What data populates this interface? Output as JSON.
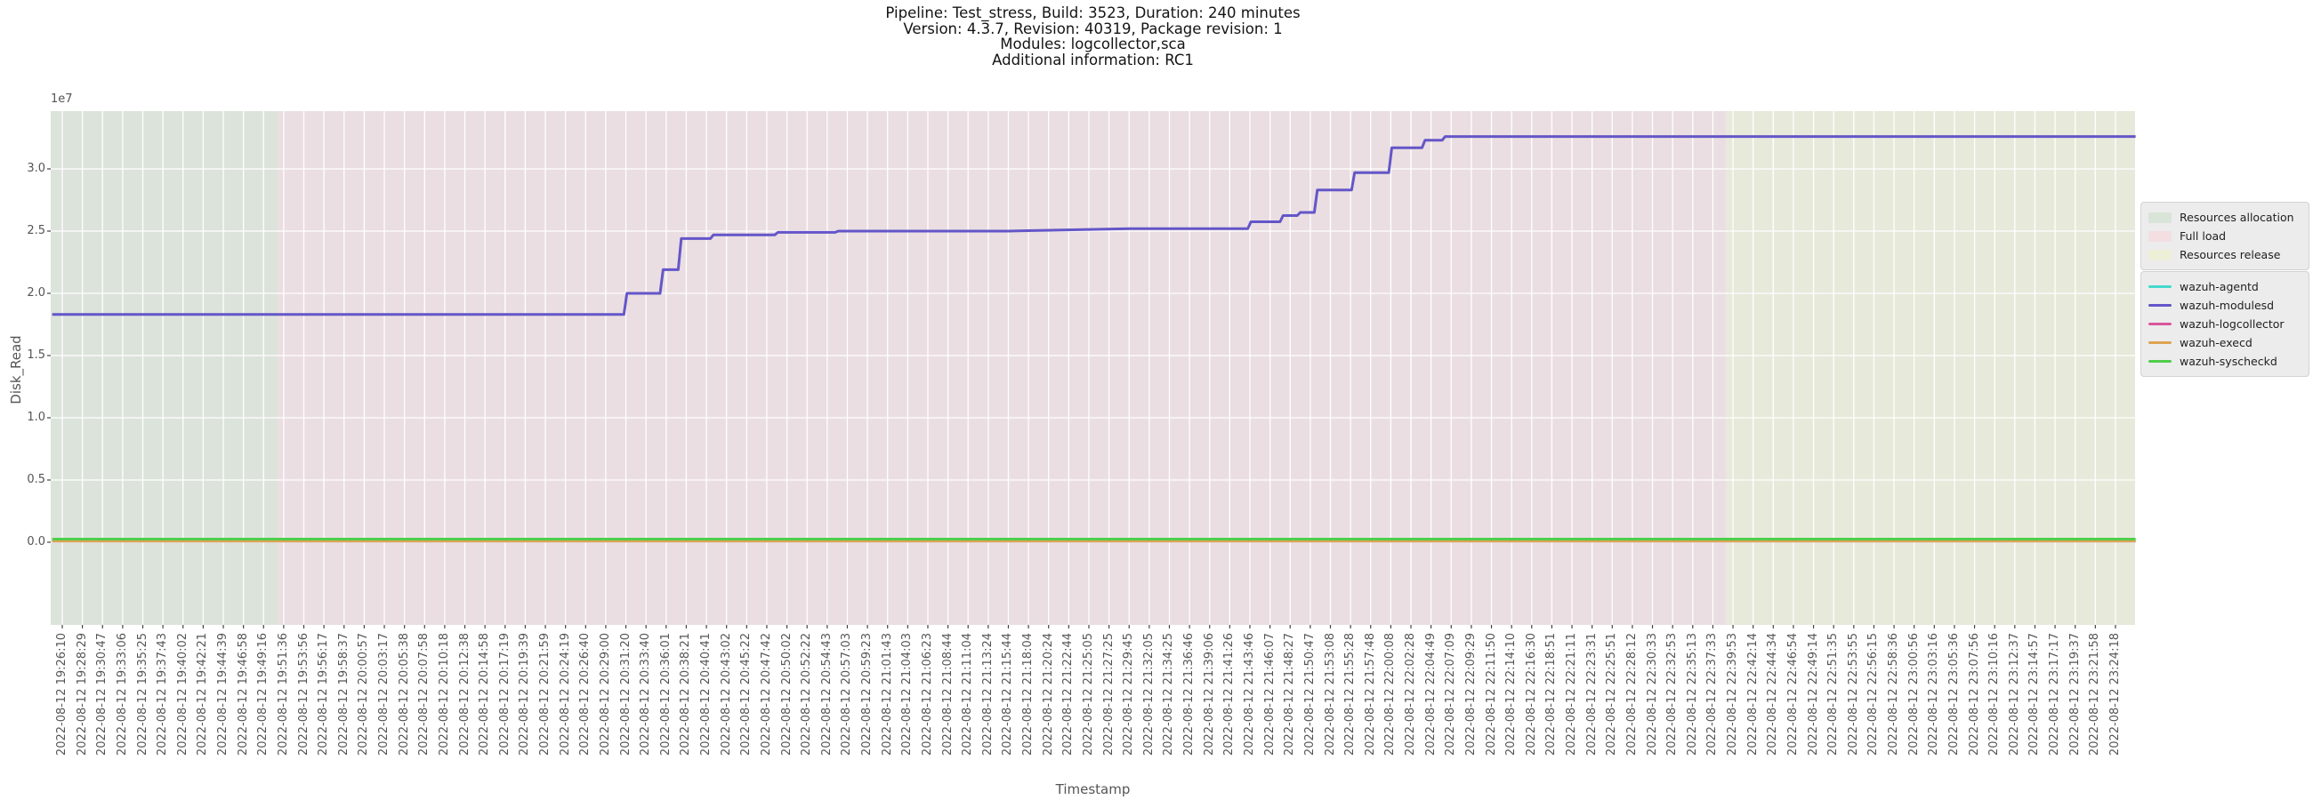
{
  "title": {
    "line1": "Pipeline: Test_stress, Build: 3523, Duration: 240 minutes",
    "line2": "Version: 4.3.7, Revision: 40319, Package revision: 1",
    "line3": "Modules: logcollector,sca",
    "line4": "Additional information: RC1"
  },
  "axes": {
    "x_label": "Timestamp",
    "y_label": "Disk_Read",
    "y_offset_label": "1e7"
  },
  "colors": {
    "figure_background": "#ffffff",
    "grid": "#ffffff",
    "tick_text": "#555555",
    "title_text": "#141414",
    "legend_background": "#ececec",
    "legend_border": "#d2d2d2"
  },
  "chart_data": {
    "type": "line",
    "title": "Pipeline: Test_stress, Build: 3523, Duration: 240 minutes",
    "xlabel": "Timestamp",
    "ylabel": "Disk_Read",
    "y_offset_factor": "1e7",
    "grid": true,
    "legend_position": "right",
    "ylim": [
      -6600000,
      34600000
    ],
    "y_ticks": [
      {
        "value": 0,
        "label": "0.0"
      },
      {
        "value": 5000000,
        "label": "0.5"
      },
      {
        "value": 10000000,
        "label": "1.0"
      },
      {
        "value": 15000000,
        "label": "1.5"
      },
      {
        "value": 20000000,
        "label": "2.0"
      },
      {
        "value": 25000000,
        "label": "2.5"
      },
      {
        "value": 30000000,
        "label": "3.0"
      }
    ],
    "x_tick_labels": [
      "2022-08-12 19:26:10",
      "2022-08-12 19:28:29",
      "2022-08-12 19:30:47",
      "2022-08-12 19:33:06",
      "2022-08-12 19:35:25",
      "2022-08-12 19:37:43",
      "2022-08-12 19:40:02",
      "2022-08-12 19:42:21",
      "2022-08-12 19:44:39",
      "2022-08-12 19:46:58",
      "2022-08-12 19:49:16",
      "2022-08-12 19:51:36",
      "2022-08-12 19:53:56",
      "2022-08-12 19:56:17",
      "2022-08-12 19:58:37",
      "2022-08-12 20:00:57",
      "2022-08-12 20:03:17",
      "2022-08-12 20:05:38",
      "2022-08-12 20:07:58",
      "2022-08-12 20:10:18",
      "2022-08-12 20:12:38",
      "2022-08-12 20:14:58",
      "2022-08-12 20:17:19",
      "2022-08-12 20:19:39",
      "2022-08-12 20:21:59",
      "2022-08-12 20:24:19",
      "2022-08-12 20:26:40",
      "2022-08-12 20:29:00",
      "2022-08-12 20:31:20",
      "2022-08-12 20:33:40",
      "2022-08-12 20:36:01",
      "2022-08-12 20:38:21",
      "2022-08-12 20:40:41",
      "2022-08-12 20:43:02",
      "2022-08-12 20:45:22",
      "2022-08-12 20:47:42",
      "2022-08-12 20:50:02",
      "2022-08-12 20:52:22",
      "2022-08-12 20:54:43",
      "2022-08-12 20:57:03",
      "2022-08-12 20:59:23",
      "2022-08-12 21:01:43",
      "2022-08-12 21:04:03",
      "2022-08-12 21:06:23",
      "2022-08-12 21:08:44",
      "2022-08-12 21:11:04",
      "2022-08-12 21:13:24",
      "2022-08-12 21:15:44",
      "2022-08-12 21:18:04",
      "2022-08-12 21:20:24",
      "2022-08-12 21:22:44",
      "2022-08-12 21:25:05",
      "2022-08-12 21:27:25",
      "2022-08-12 21:29:45",
      "2022-08-12 21:32:05",
      "2022-08-12 21:34:25",
      "2022-08-12 21:36:46",
      "2022-08-12 21:39:06",
      "2022-08-12 21:41:26",
      "2022-08-12 21:43:46",
      "2022-08-12 21:46:07",
      "2022-08-12 21:48:27",
      "2022-08-12 21:50:47",
      "2022-08-12 21:53:08",
      "2022-08-12 21:55:28",
      "2022-08-12 21:57:48",
      "2022-08-12 22:00:08",
      "2022-08-12 22:02:28",
      "2022-08-12 22:04:49",
      "2022-08-12 22:07:09",
      "2022-08-12 22:09:29",
      "2022-08-12 22:11:50",
      "2022-08-12 22:14:10",
      "2022-08-12 22:16:30",
      "2022-08-12 22:18:51",
      "2022-08-12 22:21:11",
      "2022-08-12 22:23:31",
      "2022-08-12 22:25:51",
      "2022-08-12 22:28:12",
      "2022-08-12 22:30:33",
      "2022-08-12 22:32:53",
      "2022-08-12 22:35:13",
      "2022-08-12 22:37:33",
      "2022-08-12 22:39:53",
      "2022-08-12 22:42:14",
      "2022-08-12 22:44:34",
      "2022-08-12 22:46:54",
      "2022-08-12 22:49:14",
      "2022-08-12 22:51:35",
      "2022-08-12 22:53:55",
      "2022-08-12 22:56:15",
      "2022-08-12 22:58:36",
      "2022-08-12 23:00:56",
      "2022-08-12 23:03:16",
      "2022-08-12 23:05:36",
      "2022-08-12 23:07:56",
      "2022-08-12 23:10:16",
      "2022-08-12 23:12:37",
      "2022-08-12 23:14:57",
      "2022-08-12 23:17:17",
      "2022-08-12 23:19:37",
      "2022-08-12 23:21:58",
      "2022-08-12 23:24:18"
    ],
    "regions": [
      {
        "name": "Resources allocation",
        "color": "#dce3db",
        "swatch_color": "#d8e4d8",
        "from_tick": -0.58,
        "to_tick": 10.7
      },
      {
        "name": "Full load",
        "color": "#eadee2",
        "swatch_color": "#f3dee2",
        "from_tick": 10.7,
        "to_tick": 82.65
      },
      {
        "name": "Resources release",
        "color": "#e7e9da",
        "swatch_color": "#edefd7",
        "from_tick": 82.65,
        "to_tick": 103.0
      }
    ],
    "series": [
      {
        "name": "wazuh-agentd",
        "color": "#45d9cd",
        "points": [
          [
            -0.5,
            100000
          ],
          [
            103.0,
            100000
          ]
        ]
      },
      {
        "name": "wazuh-modulesd",
        "color": "#6456c8",
        "points": [
          [
            -0.5,
            18300000
          ],
          [
            27.9,
            18300000
          ],
          [
            28.05,
            20000000
          ],
          [
            29.7,
            20000000
          ],
          [
            29.85,
            21900000
          ],
          [
            30.6,
            21900000
          ],
          [
            30.75,
            24400000
          ],
          [
            32.2,
            24400000
          ],
          [
            32.35,
            24700000
          ],
          [
            35.4,
            24700000
          ],
          [
            35.55,
            24900000
          ],
          [
            38.4,
            24900000
          ],
          [
            38.55,
            25000000
          ],
          [
            47.0,
            25000000
          ],
          [
            53.0,
            25200000
          ],
          [
            58.9,
            25200000
          ],
          [
            59.05,
            25750000
          ],
          [
            60.5,
            25750000
          ],
          [
            60.65,
            26250000
          ],
          [
            61.35,
            26250000
          ],
          [
            61.5,
            26500000
          ],
          [
            62.2,
            26500000
          ],
          [
            62.35,
            28300000
          ],
          [
            64.05,
            28300000
          ],
          [
            64.2,
            29700000
          ],
          [
            65.9,
            29700000
          ],
          [
            66.05,
            31700000
          ],
          [
            67.55,
            31700000
          ],
          [
            67.7,
            32300000
          ],
          [
            68.55,
            32300000
          ],
          [
            68.7,
            32600000
          ],
          [
            103.0,
            32600000
          ]
        ]
      },
      {
        "name": "wazuh-logcollector",
        "color": "#da579c",
        "points": [
          [
            -0.5,
            100000
          ],
          [
            103.0,
            100000
          ]
        ]
      },
      {
        "name": "wazuh-execd",
        "color": "#dda452",
        "points": [
          [
            -0.5,
            100000
          ],
          [
            103.0,
            100000
          ]
        ]
      },
      {
        "name": "wazuh-syscheckd",
        "color": "#4fce4b",
        "points": [
          [
            -0.5,
            250000
          ],
          [
            103.0,
            250000
          ]
        ]
      }
    ]
  }
}
